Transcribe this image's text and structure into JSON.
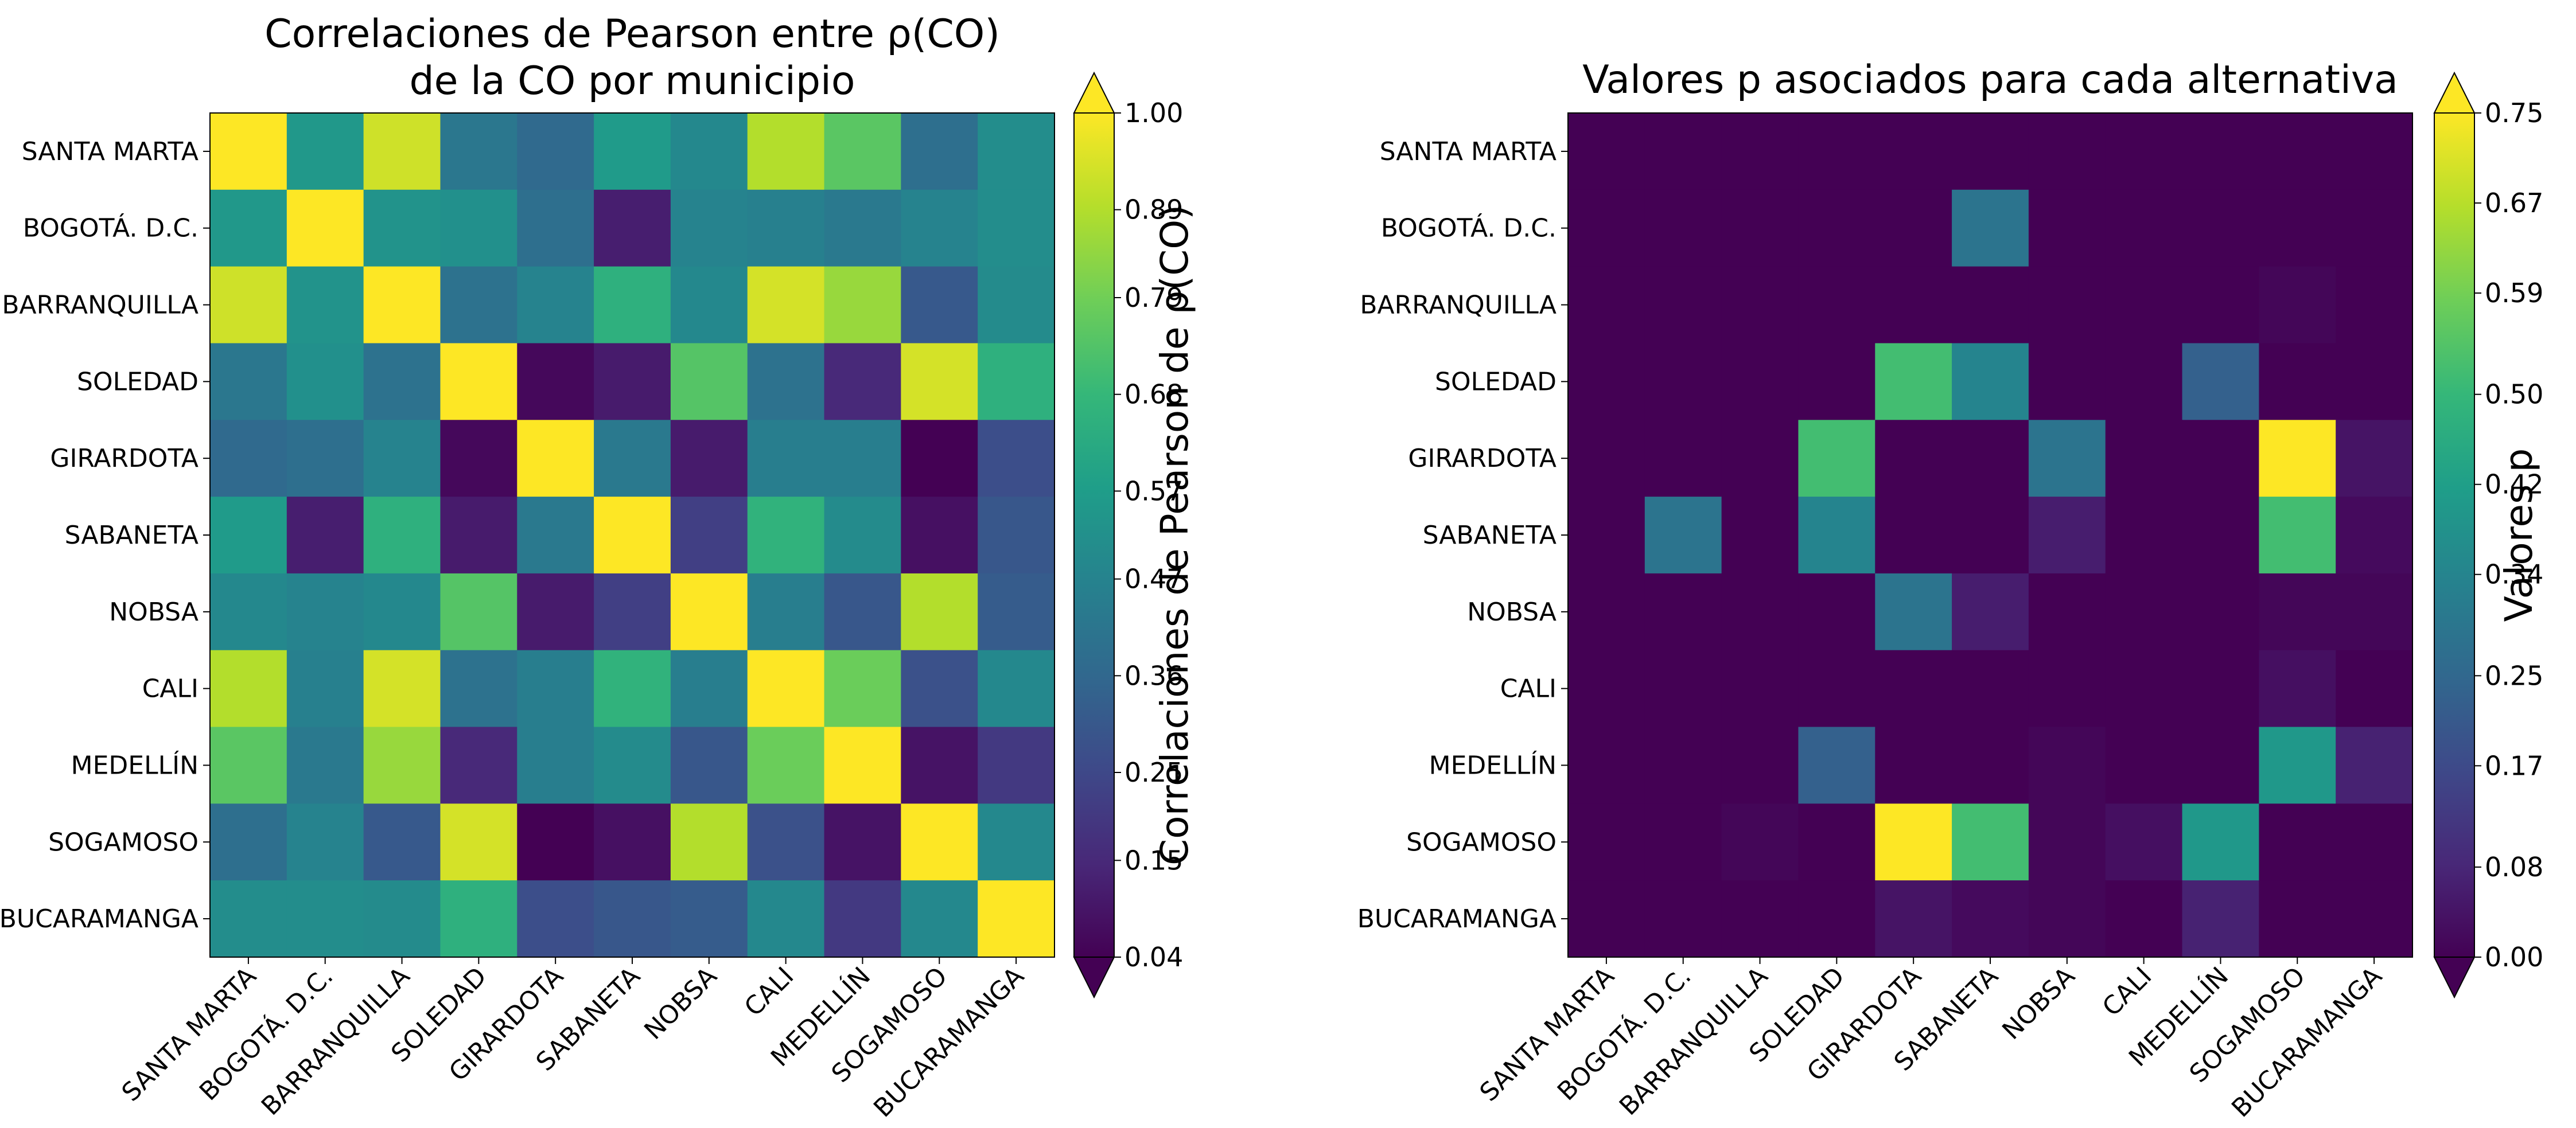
{
  "chart_data": [
    {
      "type": "heatmap",
      "title_lines": [
        "Correlaciones de Pearson entre ρ(CO)",
        "de la CO por municipio"
      ],
      "rows": [
        "SANTA MARTA",
        "BOGOTÁ. D.C.",
        "BARRANQUILLA",
        "SOLEDAD",
        "GIRARDOTA",
        "SABANETA",
        "NOBSA",
        "CALI",
        "MEDELLÍN",
        "SOGAMOSO",
        "BUCARAMANGA"
      ],
      "columns": [
        "SANTA MARTA",
        "BOGOTÁ. D.C.",
        "BARRANQUILLA",
        "SOLEDAD",
        "GIRARDOTA",
        "SABANETA",
        "NOBSA",
        "CALI",
        "MEDELLÍN",
        "SOGAMOSO",
        "BUCARAMANGA"
      ],
      "values": [
        [
          1.0,
          0.55,
          0.93,
          0.42,
          0.37,
          0.56,
          0.49,
          0.89,
          0.75,
          0.39,
          0.51
        ],
        [
          0.55,
          1.0,
          0.53,
          0.52,
          0.39,
          0.12,
          0.47,
          0.46,
          0.43,
          0.47,
          0.51
        ],
        [
          0.93,
          0.53,
          1.0,
          0.4,
          0.47,
          0.65,
          0.49,
          0.94,
          0.85,
          0.31,
          0.5
        ],
        [
          0.42,
          0.52,
          0.4,
          1.0,
          0.06,
          0.11,
          0.74,
          0.4,
          0.15,
          0.94,
          0.65
        ],
        [
          0.37,
          0.39,
          0.47,
          0.06,
          1.0,
          0.43,
          0.11,
          0.45,
          0.45,
          0.04,
          0.27
        ],
        [
          0.56,
          0.12,
          0.65,
          0.11,
          0.43,
          1.0,
          0.22,
          0.66,
          0.5,
          0.08,
          0.3
        ],
        [
          0.49,
          0.47,
          0.49,
          0.74,
          0.11,
          0.22,
          1.0,
          0.45,
          0.3,
          0.89,
          0.32
        ],
        [
          0.89,
          0.46,
          0.94,
          0.4,
          0.45,
          0.66,
          0.45,
          1.0,
          0.78,
          0.28,
          0.49
        ],
        [
          0.75,
          0.43,
          0.85,
          0.15,
          0.45,
          0.5,
          0.3,
          0.78,
          1.0,
          0.09,
          0.2
        ],
        [
          0.39,
          0.47,
          0.31,
          0.94,
          0.04,
          0.08,
          0.89,
          0.28,
          0.09,
          1.0,
          0.49
        ],
        [
          0.51,
          0.51,
          0.5,
          0.65,
          0.27,
          0.3,
          0.32,
          0.49,
          0.2,
          0.49,
          1.0
        ]
      ],
      "vmin": 0.04,
      "vmax": 1.0,
      "colormap": "viridis",
      "colorbar": {
        "label": "Correlaciones de Pearson de ρ(CO)",
        "ticks": [
          "1.00",
          "0.89",
          "0.79",
          "0.68",
          "0.57",
          "0.47",
          "0.36",
          "0.25",
          "0.15",
          "0.04"
        ],
        "extend": "both"
      }
    },
    {
      "type": "heatmap",
      "title_lines": [
        "Valores p asociados para cada alternativa"
      ],
      "rows": [
        "SANTA MARTA",
        "BOGOTÁ. D.C.",
        "BARRANQUILLA",
        "SOLEDAD",
        "GIRARDOTA",
        "SABANETA",
        "NOBSA",
        "CALI",
        "MEDELLÍN",
        "SOGAMOSO",
        "BUCARAMANGA"
      ],
      "columns": [
        "SANTA MARTA",
        "BOGOTÁ. D.C.",
        "BARRANQUILLA",
        "SOLEDAD",
        "GIRARDOTA",
        "SABANETA",
        "NOBSA",
        "CALI",
        "MEDELLÍN",
        "SOGAMOSO",
        "BUCARAMANGA"
      ],
      "values": [
        [
          0.0,
          0.0,
          0.0,
          0.0,
          0.0,
          0.0,
          0.0,
          0.0,
          0.0,
          0.0,
          0.0
        ],
        [
          0.0,
          0.0,
          0.0,
          0.0,
          0.0,
          0.29,
          0.0,
          0.0,
          0.0,
          0.0,
          0.0
        ],
        [
          0.0,
          0.0,
          0.0,
          0.0,
          0.0,
          0.0,
          0.0,
          0.0,
          0.0,
          0.01,
          0.0
        ],
        [
          0.0,
          0.0,
          0.0,
          0.0,
          0.52,
          0.34,
          0.0,
          0.0,
          0.23,
          0.0,
          0.0
        ],
        [
          0.0,
          0.0,
          0.0,
          0.52,
          0.0,
          0.0,
          0.29,
          0.0,
          0.0,
          0.75,
          0.04
        ],
        [
          0.0,
          0.29,
          0.0,
          0.34,
          0.0,
          0.0,
          0.06,
          0.0,
          0.0,
          0.52,
          0.02
        ],
        [
          0.0,
          0.0,
          0.0,
          0.0,
          0.29,
          0.06,
          0.0,
          0.0,
          0.0,
          0.01,
          0.01
        ],
        [
          0.0,
          0.0,
          0.0,
          0.0,
          0.0,
          0.0,
          0.0,
          0.0,
          0.0,
          0.03,
          0.0
        ],
        [
          0.0,
          0.0,
          0.0,
          0.23,
          0.0,
          0.0,
          0.01,
          0.0,
          0.0,
          0.4,
          0.07
        ],
        [
          0.0,
          0.0,
          0.01,
          0.0,
          0.75,
          0.52,
          0.01,
          0.03,
          0.4,
          0.0,
          0.0
        ],
        [
          0.0,
          0.0,
          0.0,
          0.0,
          0.04,
          0.02,
          0.01,
          0.0,
          0.07,
          0.0,
          0.0
        ]
      ],
      "vmin": 0.0,
      "vmax": 0.75,
      "colormap": "viridis",
      "colorbar": {
        "label": "Valores p",
        "ticks": [
          "0.75",
          "0.67",
          "0.59",
          "0.50",
          "0.42",
          "0.34",
          "0.25",
          "0.17",
          "0.08",
          "0.00"
        ],
        "extend": "both"
      }
    }
  ]
}
